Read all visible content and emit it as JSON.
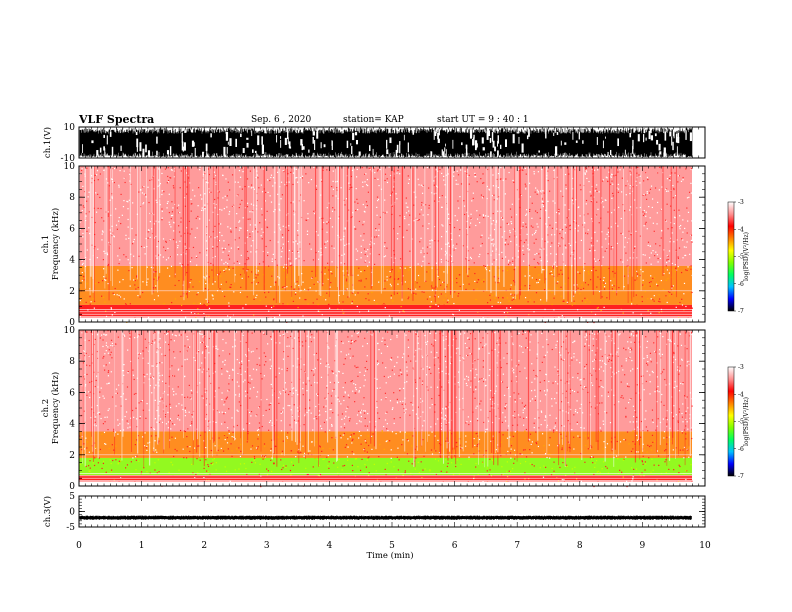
{
  "header": {
    "title": "VLF Spectra",
    "date": "Sep. 6 , 2020",
    "station": "station= KAP",
    "start": "start  UT  =   9  : 40 : 1"
  },
  "chart_data": [
    {
      "type": "line",
      "panel": "ch1-waveform",
      "ylabel": "ch.1(V)",
      "ylim": [
        -10,
        10
      ],
      "yticks": [
        "10",
        "-10"
      ],
      "xlim": [
        0,
        10
      ],
      "description_of_data": "dense oscillating waveform filling most of the range"
    },
    {
      "type": "heatmap",
      "panel": "ch1-spectrogram",
      "ylabel": "ch.1\nFrequency  (kHz)",
      "ylim": [
        0,
        10
      ],
      "yticks": [
        "0",
        "2",
        "4",
        "6",
        "8",
        "10"
      ],
      "xlim": [
        0,
        10
      ],
      "bands": [
        {
          "from_khz": 0.3,
          "to_khz": 1.1,
          "level": -4.0
        },
        {
          "from_khz": 1.1,
          "to_khz": 2.0,
          "level": -4.5
        },
        {
          "from_khz": 2.0,
          "to_khz": 3.6,
          "level": -4.2
        },
        {
          "from_khz": 3.6,
          "to_khz": 10,
          "level": -3.6
        }
      ]
    },
    {
      "type": "heatmap",
      "panel": "ch2-spectrogram",
      "ylabel": "ch.2\nFrequency  (kHz)",
      "ylim": [
        0,
        10
      ],
      "yticks": [
        "0",
        "2",
        "4",
        "6",
        "8",
        "10"
      ],
      "xlim": [
        0,
        10
      ],
      "bands": [
        {
          "from_khz": 0.3,
          "to_khz": 0.7,
          "level": -4.0
        },
        {
          "from_khz": 0.7,
          "to_khz": 1.8,
          "level": -5.2
        },
        {
          "from_khz": 1.8,
          "to_khz": 3.5,
          "level": -4.2
        },
        {
          "from_khz": 3.5,
          "to_khz": 10,
          "level": -3.6
        }
      ]
    },
    {
      "type": "line",
      "panel": "ch3-waveform",
      "ylabel": "ch.3(V)",
      "ylim": [
        -5,
        5
      ],
      "yticks": [
        "5",
        "0",
        "-5"
      ],
      "xlim": [
        0,
        10
      ],
      "xticks": [
        "0",
        "1",
        "2",
        "3",
        "4",
        "5",
        "6",
        "7",
        "8",
        "9",
        "10"
      ],
      "xlabel": "Time  (min)",
      "description_of_data": "narrow band of signal centred near -2 V"
    }
  ],
  "colorbar": {
    "label": "log(PSD)(V²/Hz)",
    "ticks": [
      "-3",
      "-4",
      "-5",
      "-6",
      "-7"
    ],
    "range": [
      -7,
      -3
    ],
    "colors": [
      "#000000",
      "#0000ff",
      "#00c0ff",
      "#00ff60",
      "#80ff00",
      "#ffff00",
      "#ff8000",
      "#ff0000",
      "#ff9090",
      "#ffffff"
    ]
  }
}
